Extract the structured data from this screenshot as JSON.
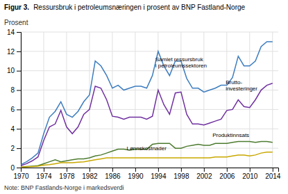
{
  "chart_data": {
    "type": "line",
    "figure_label": "Figur 3.",
    "title": "Ressursbruk i petroleumsnæringen i prosent av BNP Fastland-Norge",
    "y_label": "Prosent",
    "note": "Note: BNP Fastlands-Norge i markedsverdi",
    "x": [
      1970,
      1971,
      1972,
      1973,
      1974,
      1975,
      1976,
      1977,
      1978,
      1979,
      1980,
      1981,
      1982,
      1983,
      1984,
      1985,
      1986,
      1987,
      1988,
      1989,
      1990,
      1991,
      1992,
      1993,
      1994,
      1995,
      1996,
      1997,
      1998,
      1999,
      2000,
      2001,
      2002,
      2003,
      2004,
      2005,
      2006,
      2007,
      2008,
      2009,
      2010,
      2011,
      2012,
      2013,
      2014
    ],
    "xlim": [
      1970,
      2015
    ],
    "xticks": [
      1970,
      1974,
      1978,
      1982,
      1986,
      1990,
      1994,
      1998,
      2002,
      2006,
      2010,
      2014
    ],
    "ylim": [
      0,
      14
    ],
    "yticks": [
      0,
      2,
      4,
      6,
      8,
      10,
      12,
      14
    ],
    "grid": true,
    "series": [
      {
        "color": "#3d7dbf",
        "values": [
          0.3,
          0.6,
          1.0,
          1.5,
          3.5,
          5.2,
          5.8,
          6.8,
          5.5,
          5.2,
          5.8,
          6.8,
          7.5,
          11.0,
          10.5,
          9.5,
          8.2,
          8.5,
          8.0,
          8.2,
          8.4,
          8.4,
          8.2,
          9.5,
          12.0,
          10.5,
          9.5,
          11.0,
          11.0,
          9.2,
          8.2,
          8.2,
          7.8,
          8.0,
          8.2,
          8.5,
          8.5,
          9.3,
          11.5,
          10.5,
          10.5,
          11.0,
          12.5,
          13.0,
          13.0
        ]
      },
      {
        "color": "#7030a0",
        "values": [
          0.2,
          0.4,
          0.7,
          1.1,
          2.8,
          4.2,
          4.5,
          5.9,
          4.2,
          3.5,
          4.2,
          5.5,
          6.0,
          8.4,
          8.2,
          7.0,
          5.3,
          5.2,
          5.0,
          5.2,
          5.2,
          5.2,
          5.0,
          5.3,
          8.0,
          6.5,
          5.5,
          7.7,
          7.8,
          5.5,
          4.5,
          4.5,
          4.4,
          4.6,
          4.8,
          5.0,
          5.9,
          6.0,
          7.0,
          6.3,
          6.2,
          7.0,
          8.0,
          8.5,
          8.7
        ]
      },
      {
        "color": "#4e7c30",
        "values": [
          0.05,
          0.1,
          0.15,
          0.2,
          0.4,
          0.6,
          0.8,
          0.6,
          0.7,
          0.8,
          0.9,
          0.9,
          1.0,
          1.2,
          1.3,
          1.5,
          1.7,
          1.9,
          1.9,
          1.8,
          1.9,
          1.9,
          1.9,
          2.4,
          2.5,
          2.5,
          2.5,
          2.0,
          2.0,
          2.2,
          2.3,
          2.4,
          2.3,
          2.3,
          2.5,
          2.5,
          2.5,
          2.6,
          2.7,
          2.7,
          2.7,
          2.6,
          2.7,
          2.7,
          2.6
        ]
      },
      {
        "color": "#c9a800",
        "values": [
          0.05,
          0.07,
          0.1,
          0.15,
          0.25,
          0.3,
          0.4,
          0.5,
          0.5,
          0.5,
          0.55,
          0.6,
          0.7,
          0.8,
          0.9,
          1.0,
          1.0,
          1.0,
          1.0,
          1.0,
          1.0,
          1.0,
          1.0,
          1.0,
          1.0,
          1.0,
          1.0,
          1.0,
          1.0,
          1.0,
          1.0,
          1.0,
          1.0,
          1.0,
          1.1,
          1.1,
          1.1,
          1.2,
          1.3,
          1.3,
          1.2,
          1.3,
          1.5,
          1.6,
          1.6
        ]
      }
    ],
    "annotations": [
      {
        "text": "Samlet ressursbruk\ni petroleumssektoren",
        "x": 1993.5,
        "y": 10.2
      },
      {
        "text": "Brutto-\ninvesteringer",
        "x": 2005.8,
        "y": 7.8
      },
      {
        "text": "Produktinnsats",
        "x": 2003.5,
        "y": 3.0
      },
      {
        "text": "Lønnskostnader",
        "x": 1988.5,
        "y": 1.65
      }
    ]
  }
}
